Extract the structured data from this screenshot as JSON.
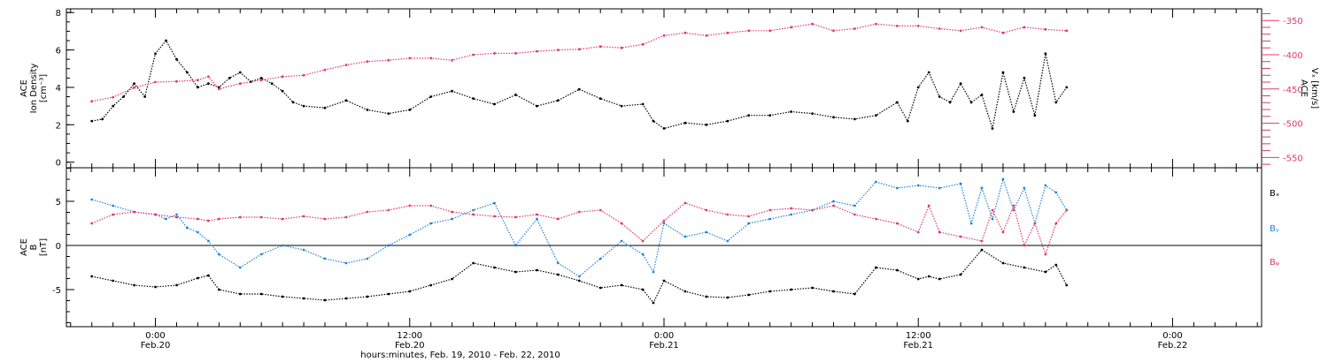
{
  "chart_data": [
    {
      "type": "scatter",
      "panel": "top",
      "ylabel_lines": [
        "ACE",
        "Ion Density",
        "[cm⁻³]"
      ],
      "ylim": [
        -0.3,
        8.2
      ],
      "yticks": [
        0,
        2,
        4,
        6,
        8
      ],
      "y2label_lines": [
        "ACE",
        "Vₓ [km/s]"
      ],
      "y2lim": [
        -565,
        -333
      ],
      "y2ticks": [
        -550,
        -500,
        -450,
        -400,
        -350
      ],
      "series": [
        {
          "axis": "left",
          "color": "#000000",
          "x": [
            -3.0,
            -2.5,
            -2.0,
            -1.5,
            -1.0,
            -0.5,
            0.0,
            0.5,
            1.0,
            1.5,
            2.0,
            2.5,
            3.0,
            3.5,
            4.0,
            4.5,
            5.0,
            5.5,
            6.0,
            6.5,
            7.0,
            8.0,
            9.0,
            10.0,
            11.0,
            12.0,
            13.0,
            14.0,
            15.0,
            16.0,
            17.0,
            18.0,
            19.0,
            20.0,
            21.0,
            22.0,
            23.0,
            23.5,
            24.0,
            25.0,
            26.0,
            27.0,
            28.0,
            29.0,
            30.0,
            31.0,
            32.0,
            33.0,
            34.0,
            35.0,
            35.5,
            36.0,
            36.5,
            37.0,
            37.5,
            38.0,
            38.5,
            39.0,
            39.5,
            40.0,
            40.5,
            41.0,
            41.5,
            42.0,
            42.5,
            43.0
          ],
          "y": [
            2.2,
            2.3,
            3.0,
            3.5,
            4.2,
            3.5,
            5.8,
            6.5,
            5.5,
            4.8,
            4.0,
            4.2,
            4.0,
            4.5,
            4.8,
            4.3,
            4.5,
            4.2,
            3.8,
            3.2,
            3.0,
            2.9,
            3.3,
            2.8,
            2.6,
            2.8,
            3.5,
            3.8,
            3.4,
            3.1,
            3.6,
            3.0,
            3.3,
            3.9,
            3.4,
            3.0,
            3.1,
            2.2,
            1.8,
            2.1,
            2.0,
            2.2,
            2.5,
            2.5,
            2.7,
            2.6,
            2.4,
            2.3,
            2.5,
            3.2,
            2.2,
            4.0,
            4.8,
            3.5,
            3.2,
            4.2,
            3.2,
            3.6,
            1.8,
            4.8,
            2.7,
            4.5,
            2.5,
            5.8,
            3.2,
            4.0
          ]
        },
        {
          "axis": "right",
          "color": "#e03a66",
          "x": [
            -3.0,
            -2.0,
            -1.0,
            0.0,
            1.0,
            2.0,
            2.5,
            3.0,
            4.0,
            5.0,
            6.0,
            7.0,
            8.0,
            9.0,
            10.0,
            11.0,
            12.0,
            13.0,
            14.0,
            15.0,
            16.0,
            17.0,
            18.0,
            19.0,
            20.0,
            21.0,
            22.0,
            23.0,
            24.0,
            25.0,
            26.0,
            27.0,
            28.0,
            29.0,
            30.0,
            31.0,
            32.0,
            33.0,
            34.0,
            35.0,
            36.0,
            37.0,
            38.0,
            39.0,
            40.0,
            41.0,
            42.0,
            43.0
          ],
          "y": [
            -468,
            -462,
            -448,
            -440,
            -439,
            -437,
            -432,
            -450,
            -442,
            -437,
            -432,
            -430,
            -422,
            -415,
            -410,
            -408,
            -405,
            -405,
            -408,
            -400,
            -398,
            -398,
            -395,
            -393,
            -392,
            -388,
            -390,
            -385,
            -372,
            -368,
            -372,
            -368,
            -365,
            -365,
            -360,
            -355,
            -365,
            -362,
            -355,
            -358,
            -358,
            -362,
            -365,
            -360,
            -368,
            -360,
            -363,
            -365
          ]
        }
      ]
    },
    {
      "type": "scatter",
      "panel": "bottom",
      "ylabel_lines": [
        "ACE",
        "B",
        "[nT]"
      ],
      "ylim": [
        -9.2,
        8.8
      ],
      "yticks": [
        -5,
        0,
        5
      ],
      "zero_line": true,
      "legend": [
        "Bₓ",
        "Bᵧ",
        "Bᵩ"
      ],
      "legend_placement": "right",
      "series": [
        {
          "name": "Bx",
          "color": "#000000",
          "x": [
            -3.0,
            -2.0,
            -1.0,
            0.0,
            1.0,
            2.0,
            2.5,
            3.0,
            4.0,
            5.0,
            6.0,
            7.0,
            8.0,
            9.0,
            10.0,
            11.0,
            12.0,
            13.0,
            14.0,
            15.0,
            16.0,
            17.0,
            18.0,
            19.0,
            20.0,
            21.0,
            22.0,
            23.0,
            23.5,
            24.0,
            25.0,
            26.0,
            27.0,
            28.0,
            29.0,
            30.0,
            31.0,
            32.0,
            33.0,
            34.0,
            35.0,
            36.0,
            36.5,
            37.0,
            38.0,
            39.0,
            40.0,
            41.0,
            42.0,
            42.5,
            43.0
          ],
          "y": [
            -3.5,
            -4.0,
            -4.5,
            -4.7,
            -4.5,
            -3.7,
            -3.4,
            -5.0,
            -5.5,
            -5.5,
            -5.8,
            -6.0,
            -6.2,
            -6.0,
            -5.8,
            -5.5,
            -5.2,
            -4.5,
            -3.8,
            -2.0,
            -2.5,
            -3.0,
            -2.8,
            -3.3,
            -4.0,
            -4.8,
            -4.5,
            -5.0,
            -6.5,
            -4.0,
            -5.2,
            -5.8,
            -5.9,
            -5.6,
            -5.2,
            -5.0,
            -4.8,
            -5.2,
            -5.5,
            -2.5,
            -2.8,
            -3.8,
            -3.5,
            -3.8,
            -3.3,
            -0.5,
            -2.0,
            -2.5,
            -3.0,
            -2.2,
            -4.5
          ]
        },
        {
          "name": "By",
          "color": "#1f84de",
          "x": [
            -3.0,
            -2.0,
            -1.0,
            0.0,
            0.5,
            1.0,
            1.5,
            2.0,
            2.5,
            3.0,
            4.0,
            5.0,
            6.0,
            7.0,
            8.0,
            9.0,
            10.0,
            11.0,
            12.0,
            13.0,
            14.0,
            15.0,
            16.0,
            17.0,
            18.0,
            19.0,
            20.0,
            21.0,
            22.0,
            23.0,
            23.5,
            24.0,
            25.0,
            26.0,
            27.0,
            28.0,
            29.0,
            30.0,
            31.0,
            32.0,
            33.0,
            34.0,
            35.0,
            36.0,
            37.0,
            38.0,
            38.5,
            39.0,
            39.5,
            40.0,
            40.5,
            41.0,
            41.5,
            42.0,
            42.5,
            43.0
          ],
          "y": [
            5.2,
            4.5,
            3.8,
            3.5,
            3.0,
            3.5,
            2.0,
            1.5,
            0.5,
            -1.0,
            -2.5,
            -1.0,
            0.0,
            -0.5,
            -1.5,
            -2.0,
            -1.5,
            0.0,
            1.2,
            2.5,
            3.0,
            4.0,
            4.8,
            0.0,
            3.0,
            -2.0,
            -3.5,
            -1.5,
            0.5,
            -1.0,
            -3.0,
            2.5,
            1.0,
            1.5,
            0.5,
            2.5,
            3.0,
            3.5,
            4.0,
            5.0,
            4.5,
            7.2,
            6.5,
            6.8,
            6.5,
            7.0,
            2.5,
            6.5,
            3.0,
            7.5,
            4.0,
            6.5,
            2.5,
            6.8,
            6.0,
            4.0
          ]
        },
        {
          "name": "Bz",
          "color": "#e03a66",
          "x": [
            -3.0,
            -2.0,
            -1.0,
            0.0,
            1.0,
            2.0,
            2.5,
            3.0,
            4.0,
            5.0,
            6.0,
            7.0,
            8.0,
            9.0,
            10.0,
            11.0,
            12.0,
            13.0,
            14.0,
            15.0,
            16.0,
            17.0,
            18.0,
            19.0,
            20.0,
            21.0,
            22.0,
            23.0,
            24.0,
            25.0,
            26.0,
            27.0,
            28.0,
            29.0,
            30.0,
            31.0,
            32.0,
            33.0,
            34.0,
            35.0,
            36.0,
            36.5,
            37.0,
            38.0,
            39.0,
            39.5,
            40.0,
            40.5,
            41.0,
            41.5,
            42.0,
            42.5,
            43.0
          ],
          "y": [
            2.5,
            3.5,
            3.8,
            3.5,
            3.2,
            3.0,
            2.8,
            3.0,
            3.2,
            3.2,
            3.0,
            3.3,
            3.0,
            3.2,
            3.8,
            4.0,
            4.5,
            4.5,
            3.8,
            3.5,
            3.3,
            3.2,
            3.5,
            3.0,
            3.8,
            4.0,
            2.5,
            0.5,
            2.8,
            4.8,
            4.0,
            3.5,
            3.3,
            4.0,
            4.2,
            4.0,
            4.5,
            3.5,
            3.0,
            2.5,
            1.5,
            4.5,
            1.5,
            1.0,
            0.5,
            4.0,
            1.5,
            4.5,
            0.0,
            2.5,
            -1.0,
            2.5,
            4.0
          ]
        }
      ]
    }
  ],
  "xaxis": {
    "xlim": [
      -4.2,
      52.2
    ],
    "ticks": [
      {
        "x": 0,
        "time": "0:00",
        "date": "Feb.20"
      },
      {
        "x": 12,
        "time": "12:00",
        "date": "Feb.20"
      },
      {
        "x": 24,
        "time": "0:00",
        "date": "Feb.21"
      },
      {
        "x": 36,
        "time": "12:00",
        "date": "Feb.21"
      },
      {
        "x": 48,
        "time": "0:00",
        "date": "Feb.22"
      }
    ],
    "title": "hours:minutes, Feb. 19, 2010 - Feb. 22, 2010"
  }
}
